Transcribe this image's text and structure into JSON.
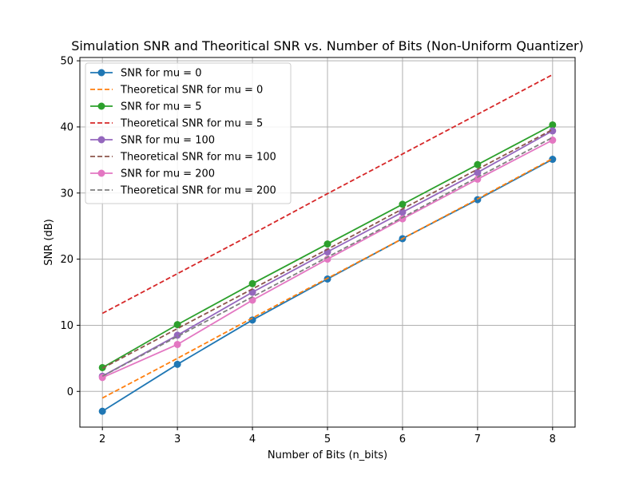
{
  "chart_data": {
    "type": "line",
    "title": "Simulation SNR and Theoritical SNR vs. Number of Bits (Non-Uniform Quantizer)",
    "xlabel": "Number of Bits (n_bits)",
    "ylabel": "SNR (dB)",
    "x": [
      2,
      3,
      4,
      5,
      6,
      7,
      8
    ],
    "xlim": [
      1.7,
      8.3
    ],
    "ylim": [
      -5.4,
      50.5
    ],
    "xticks": [
      2,
      3,
      4,
      5,
      6,
      7,
      8
    ],
    "yticks": [
      0,
      10,
      20,
      30,
      40,
      50
    ],
    "grid": true,
    "legend_position": "upper-left",
    "series": [
      {
        "name": "SNR for mu = 0",
        "color": "#1f77b4",
        "style": "solid",
        "marker": true,
        "values": [
          -3.0,
          4.1,
          10.8,
          17.0,
          23.1,
          29.0,
          35.1
        ]
      },
      {
        "name": "Theoretical SNR for mu = 0",
        "color": "#ff7f0e",
        "style": "dashed",
        "marker": false,
        "values": [
          -1.0,
          5.0,
          11.1,
          17.1,
          23.1,
          29.1,
          35.2
        ]
      },
      {
        "name": "SNR for mu = 5",
        "color": "#2ca02c",
        "style": "solid",
        "marker": true,
        "values": [
          3.6,
          10.1,
          16.3,
          22.3,
          28.3,
          34.3,
          40.3
        ]
      },
      {
        "name": "Theoretical SNR for mu = 5",
        "color": "#d62728",
        "style": "dashed",
        "marker": false,
        "values": [
          11.8,
          17.8,
          23.8,
          29.9,
          35.9,
          41.9,
          47.9
        ]
      },
      {
        "name": "SNR for mu = 100",
        "color": "#9467bd",
        "style": "solid",
        "marker": true,
        "values": [
          2.3,
          8.5,
          15.0,
          21.1,
          27.1,
          33.1,
          39.4
        ]
      },
      {
        "name": "Theoretical SNR for mu = 100",
        "color": "#8c564b",
        "style": "dashed",
        "marker": false,
        "values": [
          3.5,
          9.5,
          15.5,
          21.5,
          27.6,
          33.6,
          39.6
        ]
      },
      {
        "name": "SNR for mu = 200",
        "color": "#e377c2",
        "style": "solid",
        "marker": true,
        "values": [
          2.1,
          7.1,
          13.8,
          20.0,
          26.1,
          32.1,
          38.0
        ]
      },
      {
        "name": "Theoretical SNR for mu = 200",
        "color": "#7f7f7f",
        "style": "dashed",
        "marker": false,
        "values": [
          2.3,
          8.3,
          14.3,
          20.3,
          26.3,
          32.4,
          38.4
        ]
      }
    ]
  }
}
